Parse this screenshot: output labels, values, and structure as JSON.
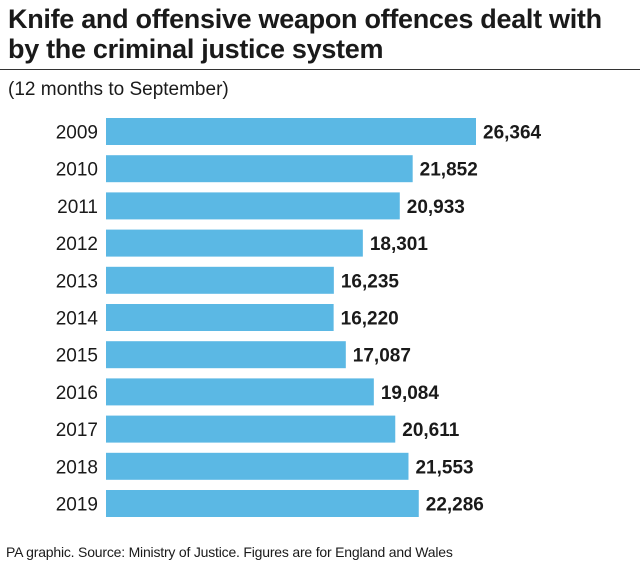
{
  "chart_data": {
    "type": "bar",
    "orientation": "horizontal",
    "title": "Knife and offensive weapon offences dealt with by the criminal justice system",
    "subtitle": "(12 months to September)",
    "categories": [
      "2009",
      "2010",
      "2011",
      "2012",
      "2013",
      "2014",
      "2015",
      "2016",
      "2017",
      "2018",
      "2019"
    ],
    "values": [
      26364,
      21852,
      20933,
      18301,
      16235,
      16220,
      17087,
      19084,
      20611,
      21553,
      22286
    ],
    "value_labels": [
      "26,364",
      "21,852",
      "20,933",
      "18,301",
      "16,235",
      "16,220",
      "17,087",
      "19,084",
      "20,611",
      "21,553",
      "22,286"
    ],
    "xlabel": "",
    "ylabel": "",
    "xlim": [
      0,
      26364
    ],
    "grid": false,
    "legend": "none",
    "bar_color": "#5bb8e4"
  },
  "footer": "PA graphic. Source: Ministry of Justice. Figures are for England and Wales"
}
